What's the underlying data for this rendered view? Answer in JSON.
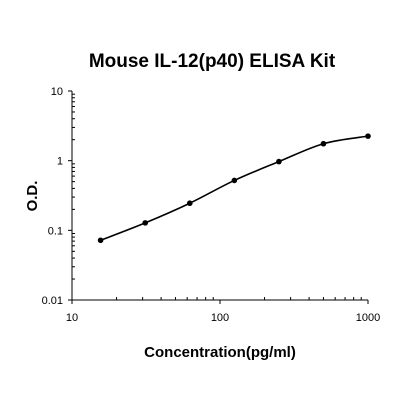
{
  "chart_data": {
    "type": "scatter",
    "title": "Mouse IL-12(p40) ELISA Kit",
    "xlabel": "Concentration(pg/ml)",
    "ylabel": "O.D.",
    "x_scale": "log",
    "y_scale": "log",
    "xlim": [
      10,
      1000
    ],
    "ylim": [
      0.01,
      10
    ],
    "x_ticks": [
      "10",
      "100",
      "1000"
    ],
    "y_ticks": [
      "0.01",
      "0.1",
      "1",
      "10"
    ],
    "grid": false,
    "legend": "none",
    "series": [
      {
        "x": [
          15.6,
          31.25,
          62.5,
          125,
          250,
          500,
          1000
        ],
        "y": [
          0.072,
          0.128,
          0.245,
          0.52,
          0.97,
          1.75,
          2.25
        ]
      }
    ],
    "fit": "smooth curve",
    "colors": {
      "line": "#000000",
      "points": "#000000",
      "axis": "#000000"
    }
  }
}
